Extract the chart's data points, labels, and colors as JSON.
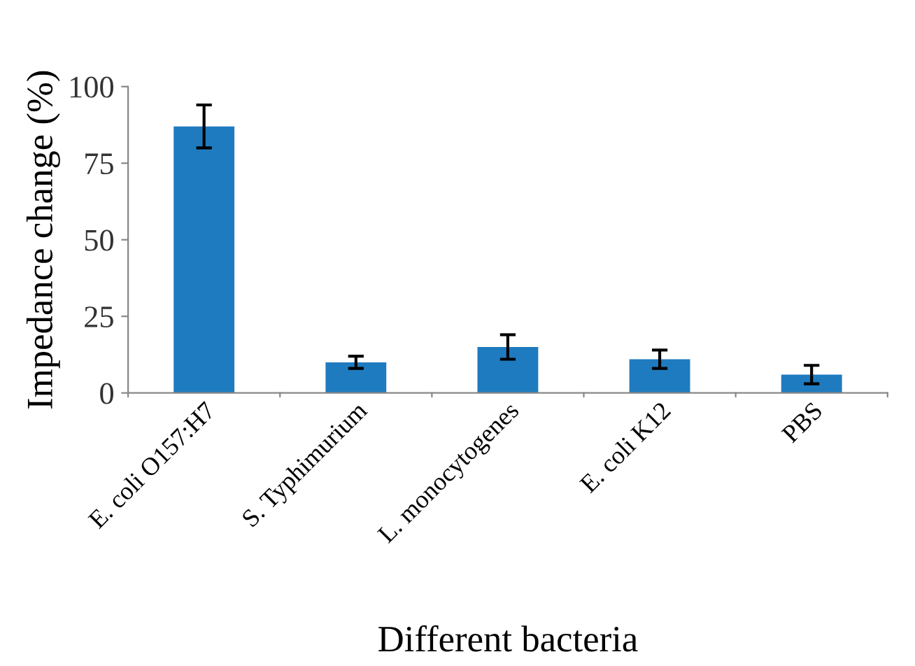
{
  "chart_data": {
    "type": "bar",
    "xlabel": "Different bacteria",
    "ylabel": "Impedance change (%)",
    "categories": [
      "E. coli O157:H7",
      "S. Typhimurium",
      "L. monocytogenes",
      "E. coli K12",
      "PBS"
    ],
    "values": [
      87,
      10,
      15,
      11,
      6
    ],
    "errors": [
      7,
      2,
      4,
      3,
      3
    ],
    "color": "#1f7bbf",
    "ylim": [
      0,
      100
    ],
    "yticks": [
      0,
      25,
      50,
      75,
      100
    ],
    "grid": false,
    "legend": false
  }
}
